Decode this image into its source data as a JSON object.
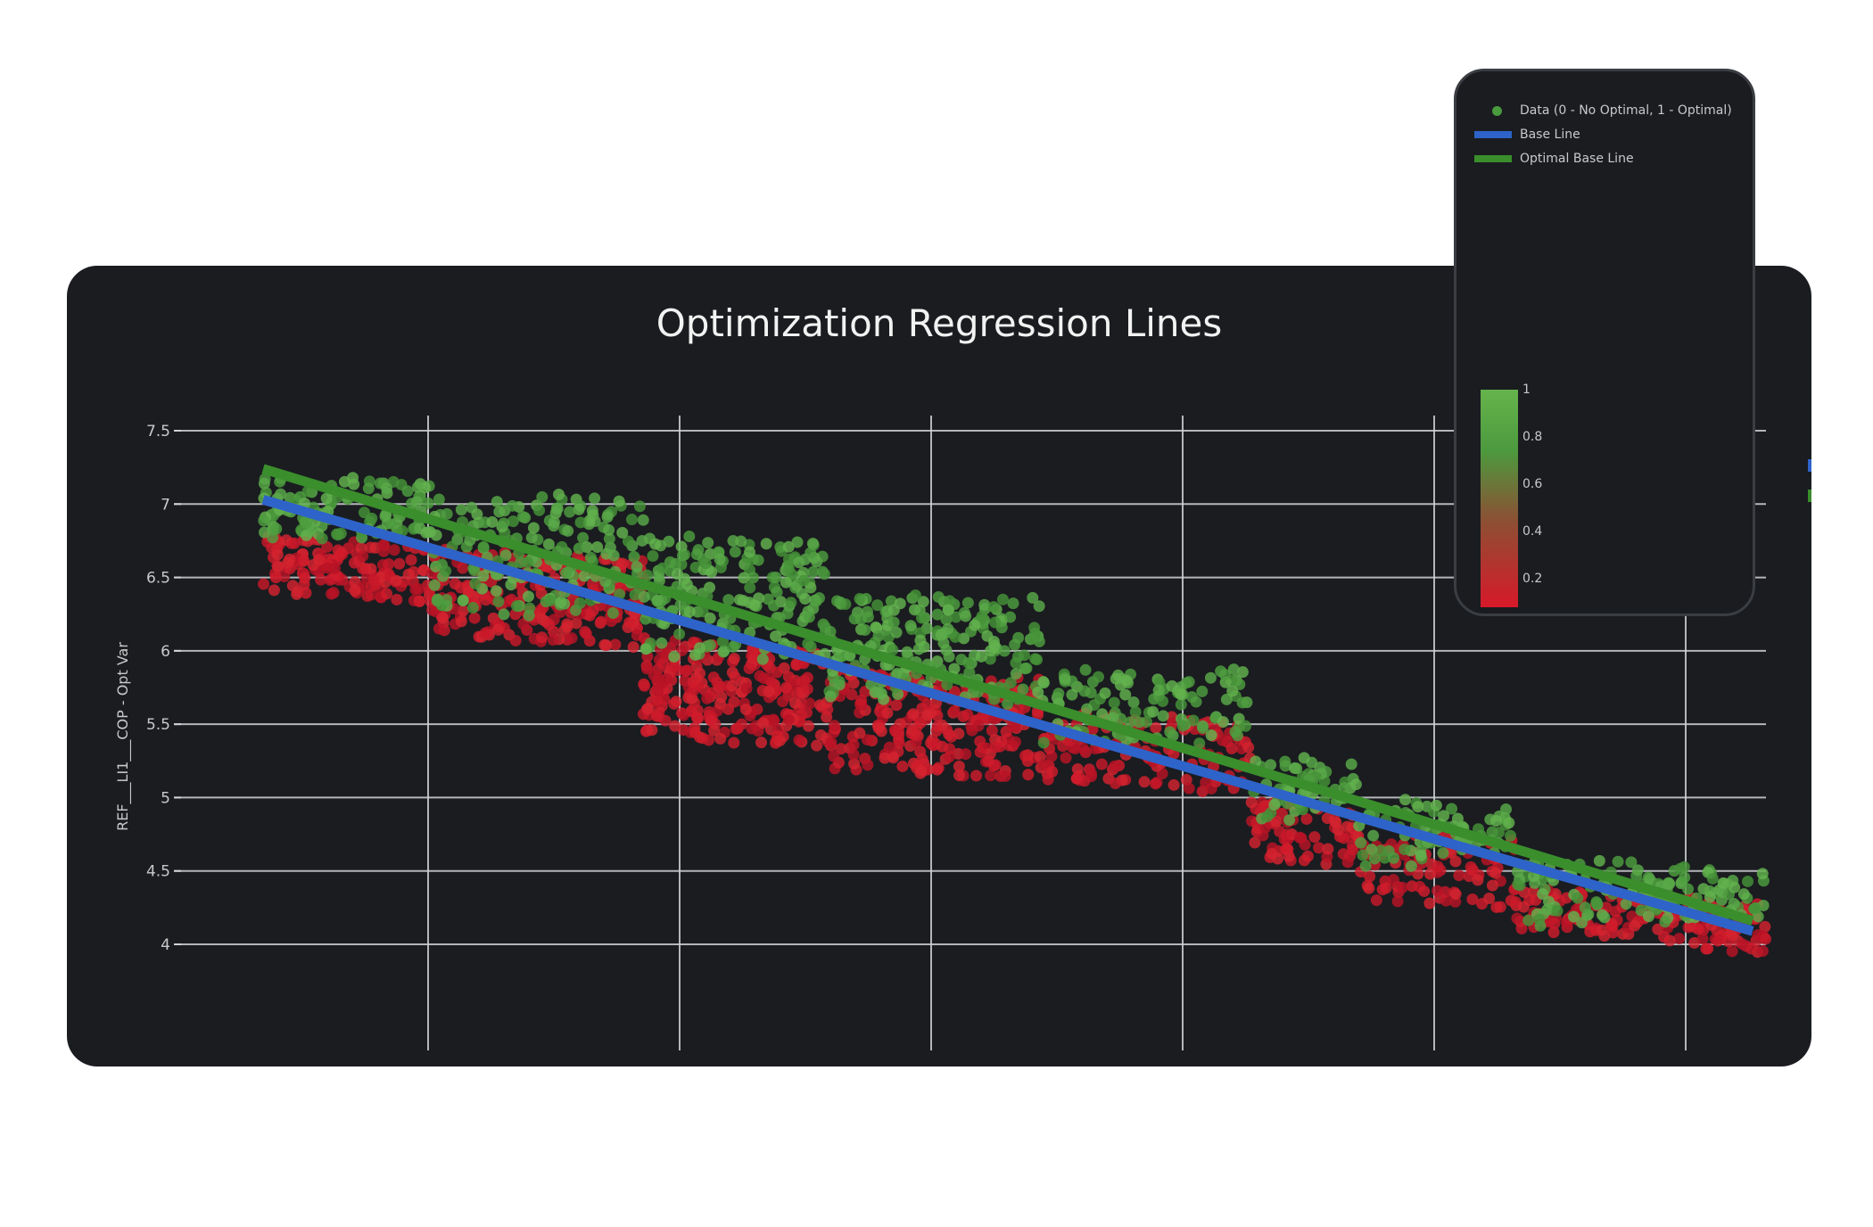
{
  "chart_data": {
    "type": "scatter",
    "title": "Optimization Regression Lines",
    "ylabel": "REF___LI1___COP - Opt Var",
    "xlabel": "",
    "ylim": [
      3.9,
      7.6
    ],
    "xlim": [
      0,
      6.6
    ],
    "yticks": [
      {
        "value": 7.5,
        "label": "7.5"
      },
      {
        "value": 7,
        "label": "7"
      },
      {
        "value": 6.5,
        "label": "6.5"
      },
      {
        "value": 6,
        "label": "6"
      },
      {
        "value": 5.5,
        "label": "5.5"
      },
      {
        "value": 5,
        "label": "5"
      },
      {
        "value": 4.5,
        "label": "4.5"
      },
      {
        "value": 4,
        "label": "4"
      }
    ],
    "xgrid": [
      1,
      2,
      3,
      4,
      5,
      6
    ],
    "grid": true,
    "legend_position": "top-right",
    "series": [
      {
        "name": "Data (0 - No Optimal, 1 - Optimal)",
        "kind": "markers",
        "color": "#4a9a3e",
        "clusters": [
          {
            "x": [
              0.36,
              1.0
            ],
            "y_opt": [
              6.8,
              7.2
            ],
            "y_non": [
              6.4,
              6.8
            ],
            "n": 140
          },
          {
            "x": [
              1.0,
              1.8
            ],
            "y_opt": [
              6.3,
              7.1
            ],
            "y_non": [
              6.1,
              6.7
            ],
            "n": 220
          },
          {
            "x": [
              1.8,
              2.5
            ],
            "y_opt": [
              6.0,
              6.8
            ],
            "y_non": [
              5.4,
              6.1
            ],
            "n": 240
          },
          {
            "x": [
              2.5,
              3.3
            ],
            "y_opt": [
              5.7,
              6.4
            ],
            "y_non": [
              5.2,
              5.9
            ],
            "n": 240
          },
          {
            "x": [
              3.3,
              4.1
            ],
            "y_opt": [
              5.4,
              5.9
            ],
            "y_non": [
              5.1,
              5.6
            ],
            "n": 130
          },
          {
            "x": [
              4.1,
              4.5
            ],
            "y_opt": [
              4.9,
              5.3
            ],
            "y_non": [
              4.6,
              5.0
            ],
            "n": 70
          },
          {
            "x": [
              4.5,
              5.1
            ],
            "y_opt": [
              4.6,
              5.0
            ],
            "y_non": [
              4.3,
              4.8
            ],
            "n": 90
          },
          {
            "x": [
              5.1,
              5.6
            ],
            "y_opt": [
              4.2,
              4.6
            ],
            "y_non": [
              4.1,
              4.4
            ],
            "n": 80
          },
          {
            "x": [
              5.6,
              6.05
            ],
            "y_opt": [
              4.2,
              4.55
            ],
            "y_non": [
              4.0,
              4.35
            ],
            "n": 90
          }
        ]
      },
      {
        "name": "Base Line",
        "kind": "line",
        "color": "#2e63c9",
        "x": [
          0.36,
          6.0
        ],
        "y": [
          7.03,
          4.09
        ]
      },
      {
        "name": "Optimal Base Line",
        "kind": "line",
        "color": "#3a8e2c",
        "x": [
          0.36,
          6.0
        ],
        "y": [
          7.24,
          4.16
        ]
      }
    ],
    "colorbar": {
      "colors": [
        "#d7192a",
        "#8c5034",
        "#4c9a3e",
        "#65b44c"
      ],
      "range": [
        0.1,
        1
      ],
      "ticks": [
        "1",
        "0.8",
        "0.6",
        "0.4",
        "0.2"
      ]
    }
  }
}
